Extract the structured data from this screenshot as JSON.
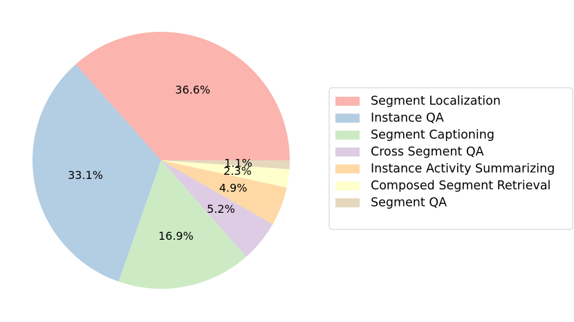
{
  "chart_data": {
    "type": "pie",
    "categories": [
      "Segment Localization",
      "Instance QA",
      "Segment Captioning",
      "Cross Segment QA",
      "Instance Activity Summarizing",
      "Composed Segment Retrieval",
      "Segment QA"
    ],
    "values": [
      36.6,
      33.1,
      16.9,
      5.2,
      4.9,
      2.3,
      1.1
    ],
    "labels": [
      "36.6%",
      "33.1%",
      "16.9%",
      "5.2%",
      "4.9%",
      "2.3%",
      "1.1%"
    ],
    "colors": [
      "#fbb4ae",
      "#b3cde3",
      "#ccebc5",
      "#decbe4",
      "#fed9a6",
      "#ffffcc",
      "#e5d8bd"
    ],
    "start_angle_deg": 0,
    "direction": "counterclockwise",
    "legend_placement": "right"
  }
}
